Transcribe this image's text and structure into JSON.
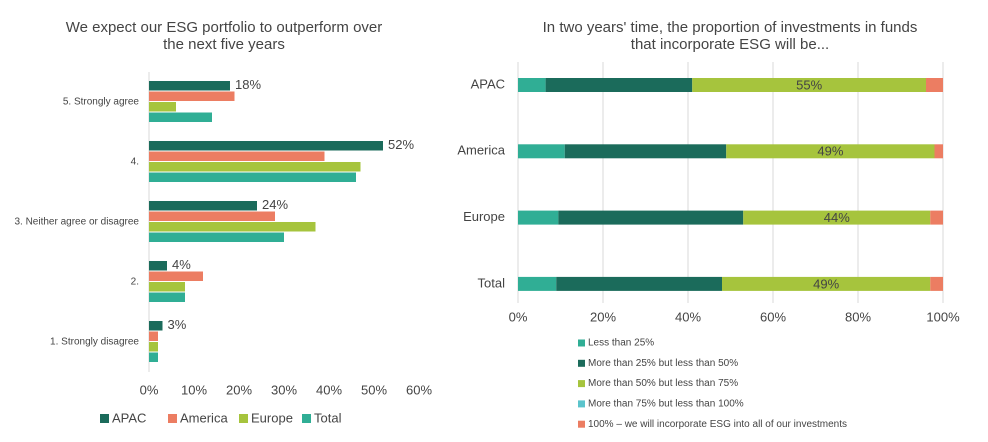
{
  "chart_data": [
    {
      "type": "grouped_hbar",
      "title": "We expect our ESG portfolio to outperform over the next five years",
      "categories": [
        "5. Strongly agree",
        "4.",
        "3. Neither agree or disagree",
        "2.",
        "1. Strongly disagree"
      ],
      "series": [
        {
          "name": "APAC",
          "color": "#1b6b5b",
          "values": [
            18,
            52,
            24,
            4,
            3
          ],
          "value_labels": [
            "18%",
            "52%",
            "24%",
            "4%",
            "3%"
          ]
        },
        {
          "name": "America",
          "color": "#ec7d62",
          "values": [
            19,
            39,
            28,
            12,
            2
          ]
        },
        {
          "name": "Europe",
          "color": "#a6c43d",
          "values": [
            6,
            47,
            37,
            8,
            2
          ]
        },
        {
          "name": "Total",
          "color": "#30ae95",
          "values": [
            14,
            46,
            30,
            8,
            2
          ]
        }
      ],
      "xlim": [
        0,
        60
      ],
      "xticks": [
        {
          "value": 0,
          "label": "0%"
        },
        {
          "value": 10,
          "label": "10%"
        },
        {
          "value": 20,
          "label": "20%"
        },
        {
          "value": 30,
          "label": "30%"
        },
        {
          "value": 40,
          "label": "40%"
        },
        {
          "value": 50,
          "label": "50%"
        },
        {
          "value": 60,
          "label": "60%"
        }
      ],
      "grid": false,
      "legend": "bottom"
    },
    {
      "type": "stacked_hbar",
      "title": "In two years' time, the proportion of investments in funds that incorporate ESG will be...",
      "categories": [
        "APAC",
        "America",
        "Europe",
        "Total"
      ],
      "series": [
        {
          "name": "Less than 25%",
          "color": "#30ae95",
          "values": [
            6.5,
            11,
            9.5,
            9
          ]
        },
        {
          "name": "More than 25% but less than 50%",
          "color": "#1b6b5b",
          "values": [
            34.5,
            38,
            43.5,
            39
          ]
        },
        {
          "name": "More than 50% but less than 75%",
          "color": "#a6c43d",
          "values": [
            55,
            49,
            44,
            49
          ],
          "value_labels": [
            "55%",
            "49%",
            "44%",
            "49%"
          ]
        },
        {
          "name": "More than 75% but less than 100%",
          "color": "#5bc4cc",
          "values": [
            0,
            0,
            0,
            0
          ]
        },
        {
          "name": "100% – we will incorporate ESG into all of our investments",
          "color": "#ec7d62",
          "values": [
            4,
            2,
            3,
            3
          ]
        }
      ],
      "xlim": [
        0,
        100
      ],
      "xticks": [
        {
          "value": 0,
          "label": "0%"
        },
        {
          "value": 20,
          "label": "20%"
        },
        {
          "value": 40,
          "label": "40%"
        },
        {
          "value": 60,
          "label": "60%"
        },
        {
          "value": 80,
          "label": "80%"
        },
        {
          "value": 100,
          "label": "100%"
        }
      ],
      "grid": true,
      "legend": "bottom"
    }
  ]
}
